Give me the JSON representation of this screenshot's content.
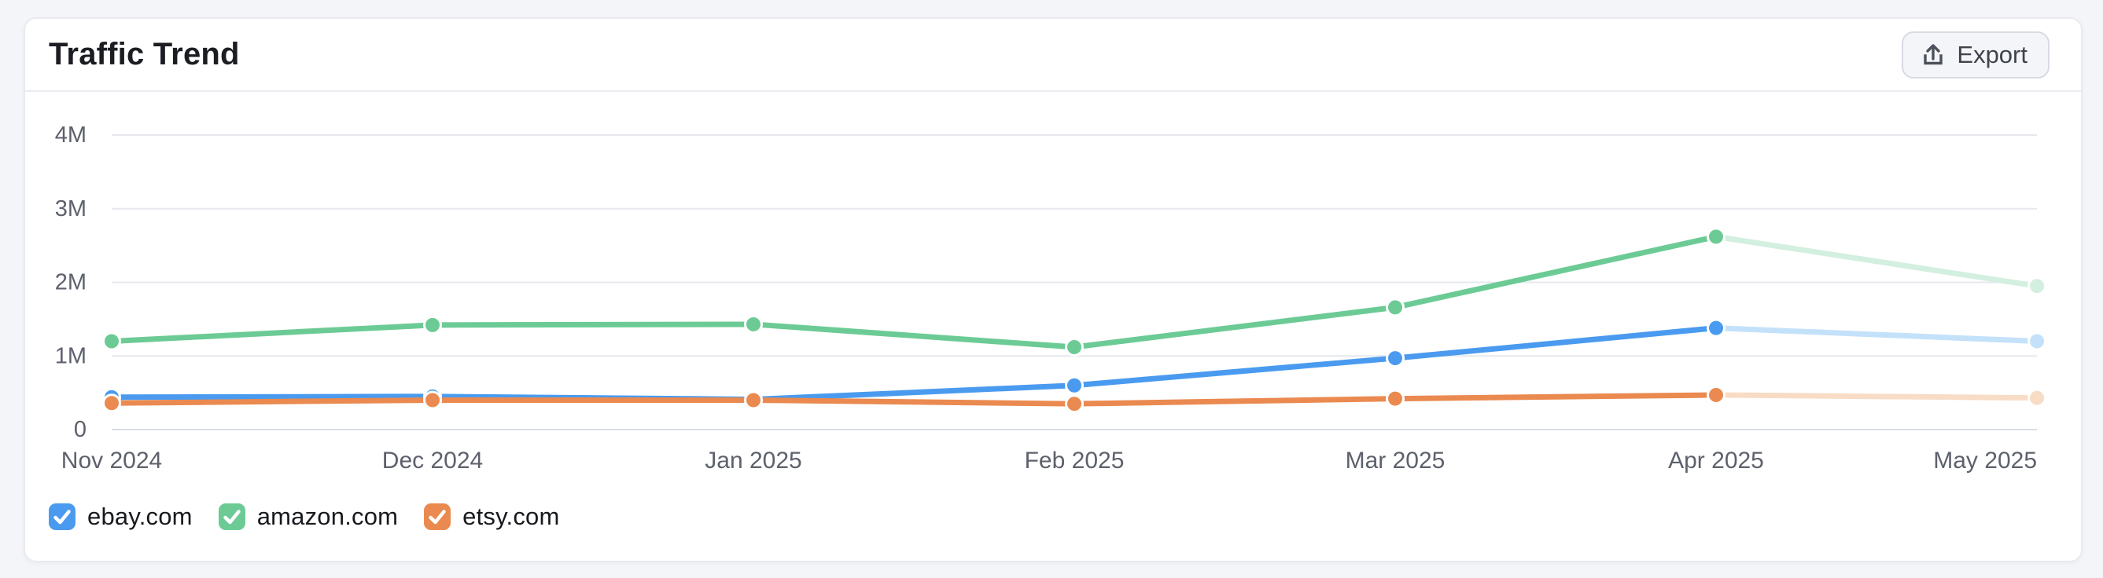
{
  "page": {
    "background_color": "#f4f5f8"
  },
  "card": {
    "title": "Traffic Trend",
    "export_button": {
      "label": "Export",
      "icon": "upload-icon"
    }
  },
  "chart_data": {
    "type": "line",
    "title": "Traffic Trend",
    "x": [
      "Nov 2024",
      "Dec 2024",
      "Jan 2025",
      "Feb 2025",
      "Mar 2025",
      "Apr 2025",
      "May 2025"
    ],
    "y_unit": "millions of visits",
    "ylim": [
      0,
      4.25
    ],
    "yticks": [
      {
        "value": 0,
        "label": "0"
      },
      {
        "value": 1,
        "label": "1M"
      },
      {
        "value": 2,
        "label": "2M"
      },
      {
        "value": 3,
        "label": "3M"
      },
      {
        "value": 4,
        "label": "4M"
      }
    ],
    "grid": true,
    "legend_position": "bottom",
    "faded_last_segment": true,
    "series": [
      {
        "name": "ebay.com",
        "color": "#4A9BEF",
        "faded_color": "#C4E1FA",
        "checked": true,
        "values_millions": [
          0.44,
          0.45,
          0.41,
          0.6,
          0.97,
          1.38,
          1.2
        ]
      },
      {
        "name": "amazon.com",
        "color": "#6CCB95",
        "faded_color": "#D3EFDF",
        "checked": true,
        "values_millions": [
          1.2,
          1.42,
          1.43,
          1.12,
          1.66,
          2.62,
          1.95
        ]
      },
      {
        "name": "etsy.com",
        "color": "#EA8A50",
        "faded_color": "#F8DCC5",
        "checked": true,
        "values_millions": [
          0.36,
          0.4,
          0.4,
          0.35,
          0.42,
          0.47,
          0.43
        ]
      }
    ]
  }
}
